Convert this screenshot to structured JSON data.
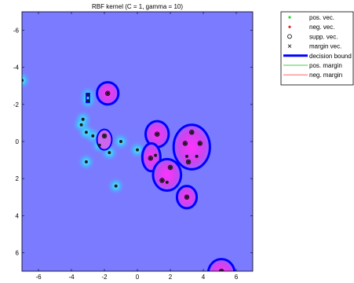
{
  "chart_data": {
    "type": "scatter",
    "title": "RBF kernel (C = 1, gamma = 10)",
    "xlabel": "",
    "ylabel": "",
    "xlim": [
      -7,
      7
    ],
    "ylim": [
      7,
      -7
    ],
    "y_axis_reversed": true,
    "x_ticks": [
      "-6",
      "-4",
      "-2",
      "0",
      "2",
      "4",
      "6"
    ],
    "y_ticks": [
      "-6",
      "-4",
      "-2",
      "0",
      "2",
      "4",
      "6"
    ],
    "grid": false,
    "legend_position": "outside-top-right",
    "legend": [
      {
        "label": "pos. vec.",
        "marker": "dot",
        "color": "#22dd22"
      },
      {
        "label": "neg. vec.",
        "marker": "dot",
        "color": "#dd2222"
      },
      {
        "label": "supp. vec.",
        "marker": "circle",
        "color": "#000000"
      },
      {
        "label": "margin vec.",
        "marker": "x",
        "color": "#000000"
      },
      {
        "label": "decision bound",
        "marker": "thick-line",
        "color": "#0000ff"
      },
      {
        "label": "pos. margin",
        "marker": "line",
        "color": "#44cc44"
      },
      {
        "label": "neg. margin",
        "marker": "line",
        "color": "#ff6666"
      }
    ],
    "colors": {
      "background": "#7b7bff",
      "glow": "#33ddff",
      "positive_region": "#e040e0",
      "boundary": "#0000ff"
    },
    "positive_points": [
      {
        "x": -3.0,
        "y": -2.5
      },
      {
        "x": -3.0,
        "y": -2.2
      },
      {
        "x": -3.3,
        "y": -1.2
      },
      {
        "x": -3.4,
        "y": -0.9
      },
      {
        "x": -2.7,
        "y": -0.3
      },
      {
        "x": -3.1,
        "y": -0.5
      },
      {
        "x": -3.1,
        "y": 1.1
      },
      {
        "x": -2.0,
        "y": -0.3
      },
      {
        "x": -2.3,
        "y": 0.2
      },
      {
        "x": -1.0,
        "y": 0.0
      },
      {
        "x": -1.3,
        "y": 2.4
      },
      {
        "x": -1.7,
        "y": 0.6
      },
      {
        "x": 0.0,
        "y": 0.45
      },
      {
        "x": 1.1,
        "y": 0.75
      },
      {
        "x": -7.0,
        "y": -3.3
      },
      {
        "x": 3.0,
        "y": 0.8
      }
    ],
    "negative_points": [
      {
        "x": -1.8,
        "y": -2.6
      },
      {
        "x": 1.2,
        "y": -0.4
      },
      {
        "x": 0.8,
        "y": 0.9
      },
      {
        "x": 1.5,
        "y": 2.1
      },
      {
        "x": 1.8,
        "y": 2.2
      },
      {
        "x": 2.0,
        "y": 1.4
      },
      {
        "x": 2.9,
        "y": 0.1
      },
      {
        "x": 3.3,
        "y": -0.5
      },
      {
        "x": 3.8,
        "y": 0.1
      },
      {
        "x": 3.1,
        "y": 1.1
      },
      {
        "x": 3.6,
        "y": 0.8
      },
      {
        "x": 3.0,
        "y": 3.0
      },
      {
        "x": 5.1,
        "y": 7.0
      }
    ],
    "support_vectors": [
      {
        "x": -1.8,
        "y": -2.6
      },
      {
        "x": -2.0,
        "y": -0.3
      },
      {
        "x": 0.8,
        "y": 0.9
      },
      {
        "x": 1.5,
        "y": 2.1
      },
      {
        "x": 2.0,
        "y": 1.4
      },
      {
        "x": 2.9,
        "y": 0.1
      },
      {
        "x": 3.3,
        "y": -0.5
      },
      {
        "x": 3.8,
        "y": 0.1
      },
      {
        "x": 3.1,
        "y": 1.1
      },
      {
        "x": 3.0,
        "y": 3.0
      },
      {
        "x": 1.2,
        "y": -0.4
      },
      {
        "x": 5.1,
        "y": 7.0
      }
    ],
    "positive_regions": [
      {
        "cx": -1.8,
        "cy": -2.6,
        "rx": 0.65,
        "ry": 0.6
      },
      {
        "cx": 1.2,
        "cy": -0.4,
        "rx": 0.7,
        "ry": 0.7
      },
      {
        "cx": 0.85,
        "cy": 0.85,
        "rx": 0.55,
        "ry": 0.75
      },
      {
        "cx": 1.8,
        "cy": 1.8,
        "rx": 0.85,
        "ry": 0.85
      },
      {
        "cx": 3.3,
        "cy": 0.3,
        "rx": 1.1,
        "ry": 1.2
      },
      {
        "cx": 3.0,
        "cy": 3.0,
        "rx": 0.6,
        "ry": 0.6
      },
      {
        "cx": 5.1,
        "cy": 7.1,
        "rx": 0.8,
        "ry": 0.75
      }
    ],
    "neg_region_shape": {
      "cx": -2.0,
      "cy": -0.1,
      "rx": 0.45,
      "ry": 0.55
    }
  }
}
